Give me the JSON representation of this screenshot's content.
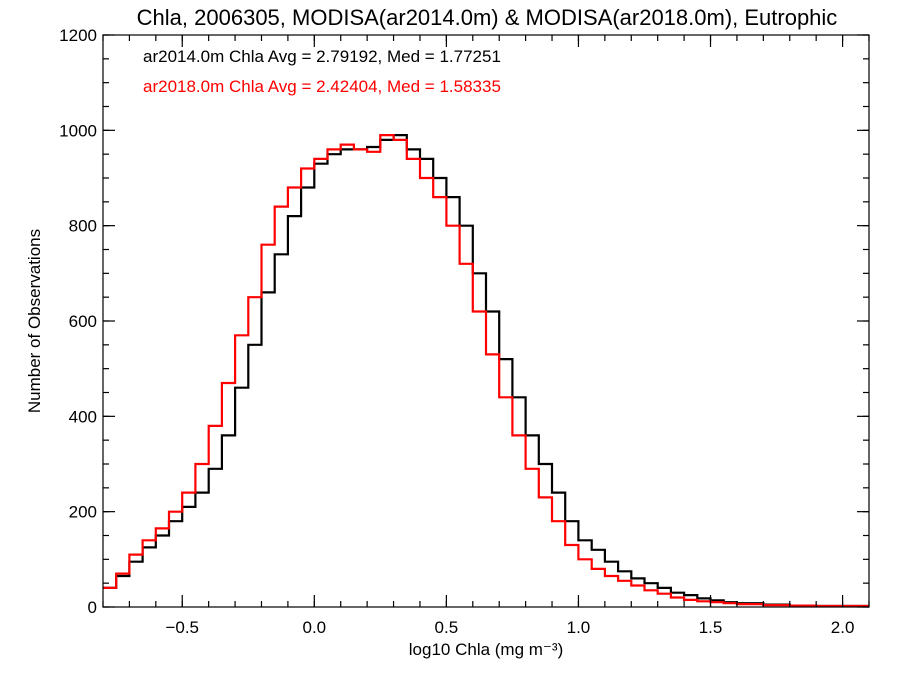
{
  "chart_data": {
    "type": "line",
    "title": "Chla, 2006305, MODISA(ar2014.0m) & MODISA(ar2018.0m), Eutrophic",
    "xlabel": "log10 Chla (mg m⁻³)",
    "ylabel": "Number of Observations",
    "xlim": [
      -0.8,
      2.1
    ],
    "ylim": [
      0,
      1200
    ],
    "x_ticks": [
      -0.5,
      0.0,
      0.5,
      1.0,
      1.5,
      2.0
    ],
    "x_tick_labels": [
      "−0.5",
      "0.0",
      "0.5",
      "1.0",
      "1.5",
      "2.0"
    ],
    "y_ticks": [
      0,
      200,
      400,
      600,
      800,
      1000,
      1200
    ],
    "y_tick_labels": [
      "0",
      "200",
      "400",
      "600",
      "800",
      "1000",
      "1200"
    ],
    "legend": [
      {
        "text": "ar2014.0m Chla Avg = 2.79192, Med = 1.77251",
        "color": "#000000"
      },
      {
        "text": "ar2018.0m Chla Avg = 2.42404, Med = 1.58335",
        "color": "#ff0000"
      }
    ],
    "step_style": "histogram",
    "series": [
      {
        "color": "#000000",
        "x": [
          -0.8,
          -0.75,
          -0.7,
          -0.65,
          -0.6,
          -0.55,
          -0.5,
          -0.45,
          -0.4,
          -0.35,
          -0.3,
          -0.25,
          -0.2,
          -0.15,
          -0.1,
          -0.05,
          0.0,
          0.05,
          0.1,
          0.15,
          0.2,
          0.25,
          0.3,
          0.35,
          0.4,
          0.45,
          0.5,
          0.55,
          0.6,
          0.65,
          0.7,
          0.75,
          0.8,
          0.85,
          0.9,
          0.95,
          1.0,
          1.05,
          1.1,
          1.15,
          1.2,
          1.25,
          1.3,
          1.35,
          1.4,
          1.45,
          1.5,
          1.55,
          1.6,
          1.7,
          1.8,
          1.9,
          2.0,
          2.1
        ],
        "values": [
          40,
          65,
          95,
          125,
          150,
          180,
          210,
          240,
          290,
          360,
          460,
          550,
          660,
          740,
          820,
          880,
          930,
          950,
          960,
          960,
          965,
          980,
          990,
          960,
          940,
          900,
          860,
          800,
          700,
          620,
          520,
          440,
          360,
          300,
          240,
          180,
          140,
          120,
          95,
          75,
          60,
          50,
          40,
          30,
          25,
          18,
          14,
          10,
          8,
          5,
          3,
          2,
          2,
          2
        ]
      },
      {
        "color": "#ff0000",
        "x": [
          -0.8,
          -0.75,
          -0.7,
          -0.65,
          -0.6,
          -0.55,
          -0.5,
          -0.45,
          -0.4,
          -0.35,
          -0.3,
          -0.25,
          -0.2,
          -0.15,
          -0.1,
          -0.05,
          0.0,
          0.05,
          0.1,
          0.15,
          0.2,
          0.25,
          0.3,
          0.35,
          0.4,
          0.45,
          0.5,
          0.55,
          0.6,
          0.65,
          0.7,
          0.75,
          0.8,
          0.85,
          0.9,
          0.95,
          1.0,
          1.05,
          1.1,
          1.15,
          1.2,
          1.25,
          1.3,
          1.35,
          1.4,
          1.45,
          1.5,
          1.55,
          1.6,
          1.7,
          1.8,
          1.9,
          2.0,
          2.1
        ],
        "values": [
          40,
          70,
          110,
          140,
          165,
          200,
          240,
          300,
          380,
          470,
          570,
          650,
          760,
          840,
          880,
          920,
          940,
          960,
          970,
          960,
          955,
          990,
          980,
          940,
          900,
          860,
          800,
          720,
          620,
          530,
          440,
          360,
          290,
          230,
          180,
          130,
          100,
          80,
          65,
          55,
          45,
          35,
          28,
          20,
          15,
          12,
          10,
          8,
          6,
          4,
          3,
          2,
          2,
          2
        ]
      }
    ]
  }
}
